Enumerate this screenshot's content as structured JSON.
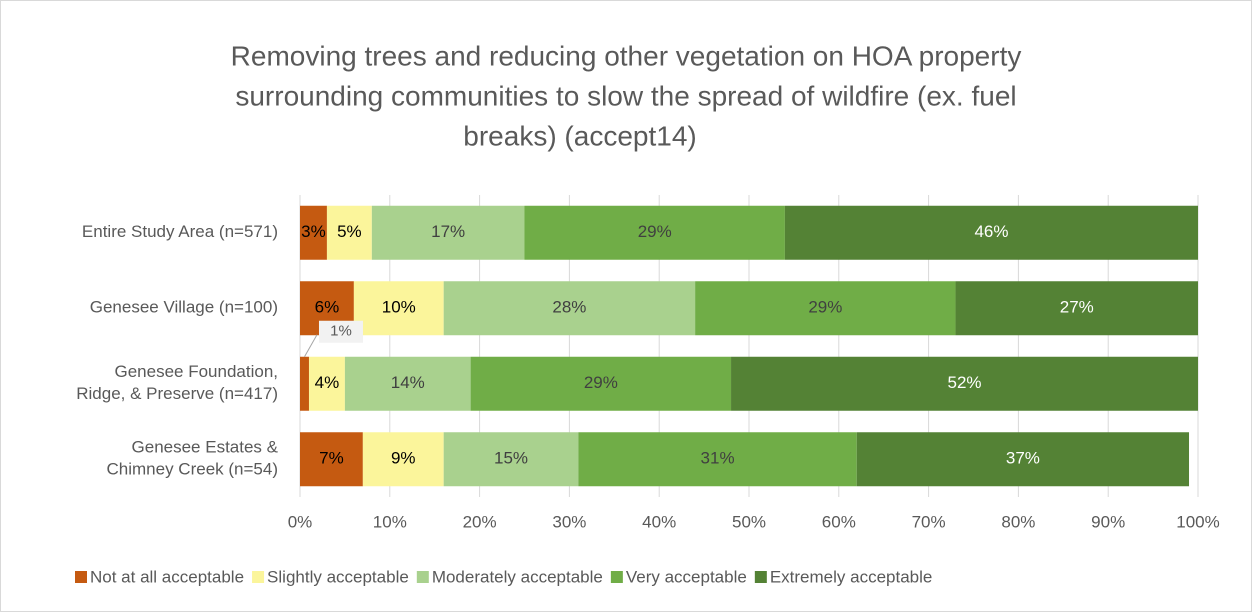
{
  "chart_data": {
    "type": "stacked_bar_horizontal",
    "title": [
      "Removing trees and reducing other vegetation on HOA property",
      "surrounding communities to slow the spread of wildfire (ex. fuel",
      "breaks) (accept14)"
    ],
    "categories": [
      [
        "Entire Study Area (n=571)"
      ],
      [
        "Genesee Village (n=100)"
      ],
      [
        "Genesee Foundation,",
        "Ridge, & Preserve (n=417)"
      ],
      [
        "Genesee Estates &",
        "Chimney Creek (n=54)"
      ]
    ],
    "series": [
      {
        "name": "Not at all acceptable",
        "color": "#c55a11",
        "values": [
          3,
          6,
          1,
          7
        ],
        "value_labels": [
          "3%",
          "6%",
          "1%",
          "7%"
        ],
        "label_color": "#000000"
      },
      {
        "name": "Slightly acceptable",
        "color": "#fbf59b",
        "values": [
          5,
          10,
          4,
          9
        ],
        "value_labels": [
          "5%",
          "10%",
          "4%",
          "9%"
        ],
        "label_color": "#000000"
      },
      {
        "name": "Moderately acceptable",
        "color": "#a9d18e",
        "values": [
          17,
          28,
          14,
          15
        ],
        "value_labels": [
          "17%",
          "28%",
          "14%",
          "15%"
        ],
        "label_color": "#404040"
      },
      {
        "name": "Very acceptable",
        "color": "#70ad47",
        "values": [
          29,
          29,
          29,
          31
        ],
        "value_labels": [
          "29%",
          "29%",
          "29%",
          "31%"
        ],
        "label_color": "#404040"
      },
      {
        "name": "Extremely acceptable",
        "color": "#548235",
        "values": [
          46,
          27,
          52,
          37
        ],
        "value_labels": [
          "46%",
          "27%",
          "52%",
          "37%"
        ],
        "label_color": "#ffffff"
      }
    ],
    "xlim": [
      0,
      100
    ],
    "xticks": [
      {
        "value": 0,
        "label": "0%"
      },
      {
        "value": 10,
        "label": "10%"
      },
      {
        "value": 20,
        "label": "20%"
      },
      {
        "value": 30,
        "label": "30%"
      },
      {
        "value": 40,
        "label": "40%"
      },
      {
        "value": 50,
        "label": "50%"
      },
      {
        "value": 60,
        "label": "60%"
      },
      {
        "value": 70,
        "label": "70%"
      },
      {
        "value": 80,
        "label": "80%"
      },
      {
        "value": 90,
        "label": "90%"
      },
      {
        "value": 100,
        "label": "100%"
      }
    ],
    "grid": true,
    "legend": "bottom"
  }
}
